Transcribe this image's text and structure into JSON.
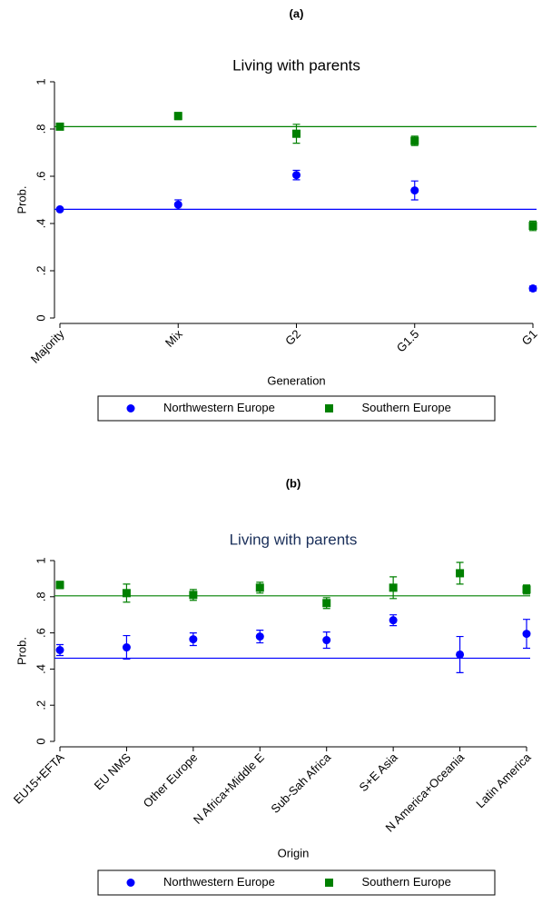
{
  "chart_data": [
    {
      "type": "errorbar",
      "panel_label": "(a)",
      "title": "Living with parents",
      "ylabel": "Prob.",
      "xlabel": "Generation",
      "categories": [
        "Majority",
        "Mix",
        "G2",
        "G1.5",
        "G1"
      ],
      "series": [
        {
          "name": "Northwestern Europe",
          "color": "#0000ff",
          "marker": "circle",
          "values": [
            0.46,
            0.48,
            0.605,
            0.54,
            0.125
          ],
          "errors": [
            0,
            0.02,
            0.02,
            0.04,
            0.01
          ]
        },
        {
          "name": "Southern Europe",
          "color": "#008000",
          "marker": "square",
          "values": [
            0.81,
            0.855,
            0.78,
            0.75,
            0.39
          ],
          "errors": [
            0.005,
            0.015,
            0.04,
            0.02,
            0.02
          ]
        }
      ],
      "ref_lines": [
        {
          "value": 0.46,
          "color": "#0000ff"
        },
        {
          "value": 0.81,
          "color": "#008000"
        }
      ],
      "ylim": [
        0,
        1
      ],
      "yticks": [
        0,
        {
          "value": 0.2,
          "label": ".2"
        },
        {
          "value": 0.4,
          "label": ".4"
        },
        {
          "value": 0.6,
          "label": ".6"
        },
        {
          "value": 0.8,
          "label": ".8"
        },
        1
      ],
      "legend": "bottom"
    },
    {
      "type": "errorbar",
      "panel_label": "(b)",
      "title": "Living with parents",
      "ylabel": "Prob.",
      "xlabel": "Origin",
      "categories": [
        "EU15+EFTA",
        "EU NMS",
        "Other Europe",
        "N Africa+Middle E",
        "Sub-Sah Africa",
        "S+E Asia",
        "N America+Oceania",
        "Latin America"
      ],
      "series": [
        {
          "name": "Northwestern Europe",
          "color": "#0000ff",
          "marker": "circle",
          "values": [
            0.505,
            0.52,
            0.565,
            0.58,
            0.56,
            0.67,
            0.48,
            0.595
          ],
          "errors": [
            0.03,
            0.065,
            0.035,
            0.035,
            0.045,
            0.03,
            0.1,
            0.08
          ]
        },
        {
          "name": "Southern Europe",
          "color": "#008000",
          "marker": "square",
          "values": [
            0.865,
            0.82,
            0.81,
            0.85,
            0.765,
            0.85,
            0.93,
            0.84
          ],
          "errors": [
            0.02,
            0.05,
            0.03,
            0.03,
            0.03,
            0.06,
            0.06,
            0.025
          ]
        }
      ],
      "ref_lines": [
        {
          "value": 0.46,
          "color": "#0000ff"
        },
        {
          "value": 0.805,
          "color": "#008000"
        }
      ],
      "ylim": [
        0,
        1
      ],
      "yticks": [
        0,
        {
          "value": 0.2,
          "label": ".2"
        },
        {
          "value": 0.4,
          "label": ".4"
        },
        {
          "value": 0.6,
          "label": ".6"
        },
        {
          "value": 0.8,
          "label": ".8"
        },
        1
      ],
      "legend": "bottom"
    }
  ]
}
